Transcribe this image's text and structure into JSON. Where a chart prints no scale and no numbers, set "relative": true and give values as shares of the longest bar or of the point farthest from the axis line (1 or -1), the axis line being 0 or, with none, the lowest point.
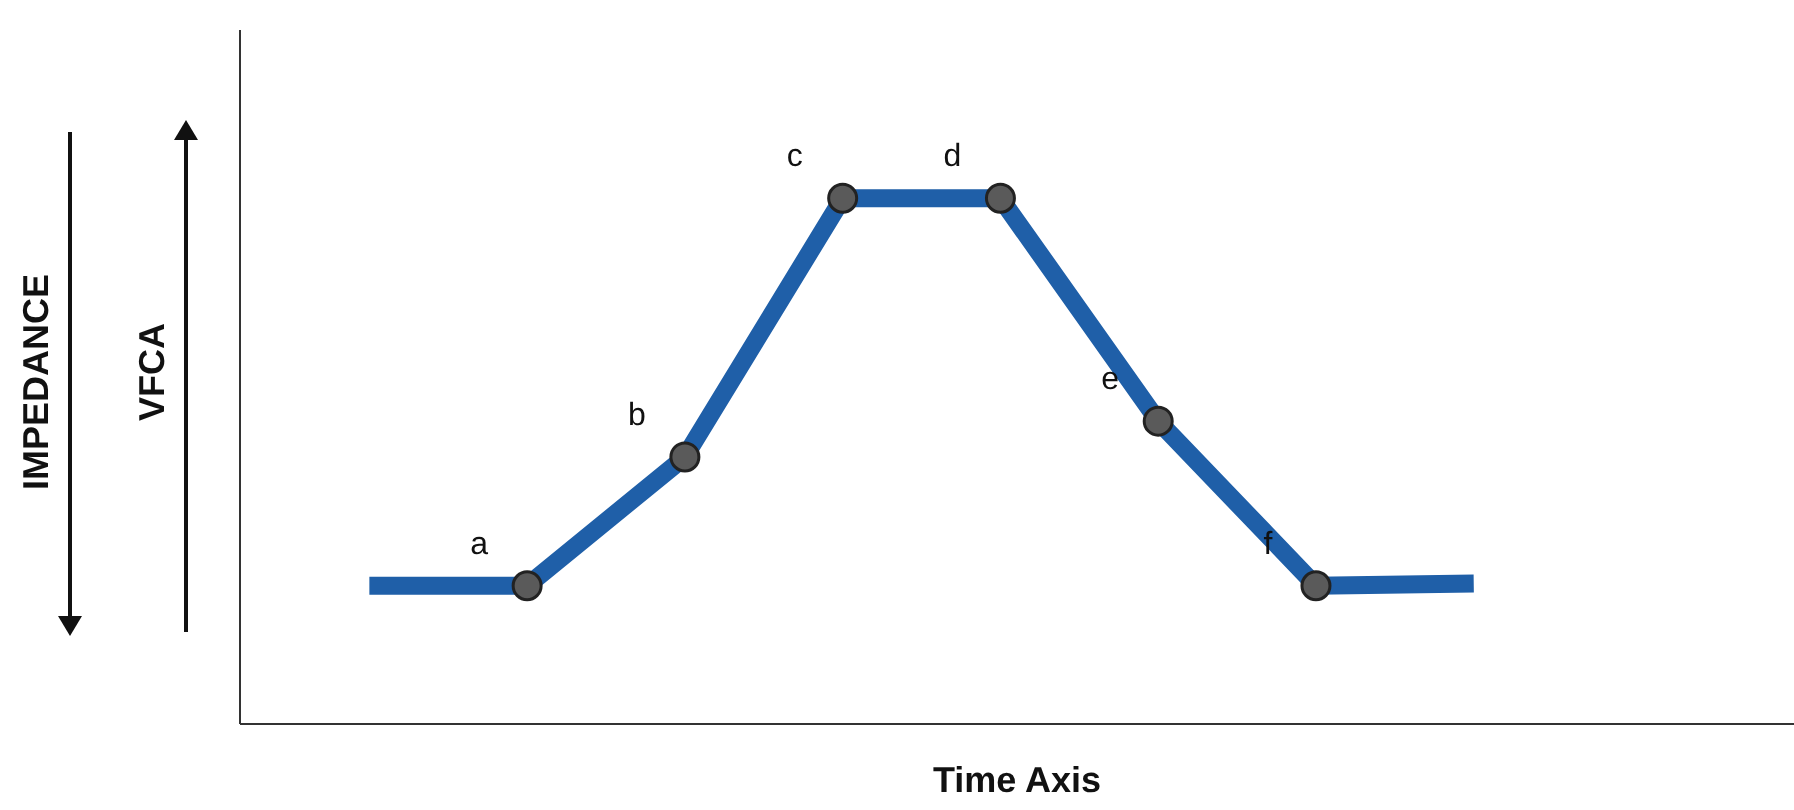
{
  "chart_data": {
    "type": "line",
    "relative": true,
    "xlabel": "Time Axis",
    "ylabel": "VFCA",
    "categories": [
      null,
      null,
      null,
      null,
      null,
      null,
      null,
      null
    ],
    "grid": false,
    "marker": "circle",
    "line_style": "solid",
    "series": [
      {
        "color": "#1f5fa8",
        "values": [
          0.263,
          0.263,
          0.508,
          1,
          1,
          0.576,
          0.263,
          0.267
        ]
      }
    ],
    "annotations": [
      "a",
      "b",
      "c",
      "d",
      "e",
      "f",
      "IMPEDANCE"
    ]
  }
}
